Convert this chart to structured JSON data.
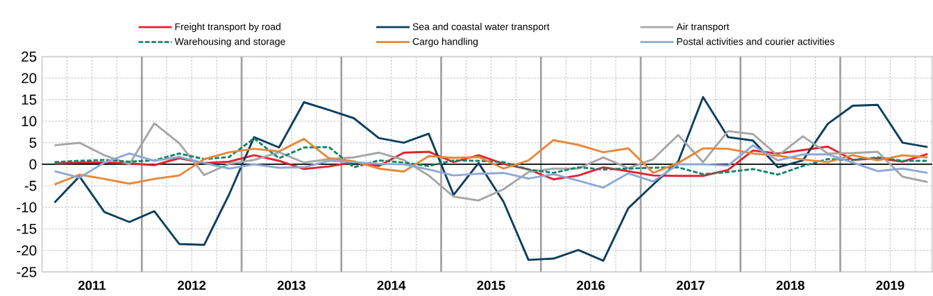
{
  "chart_data": {
    "type": "line",
    "x": [
      2010.625,
      2010.875,
      2011.125,
      2011.375,
      2011.625,
      2011.875,
      2012.125,
      2012.375,
      2012.625,
      2012.875,
      2013.125,
      2013.375,
      2013.625,
      2013.875,
      2014.125,
      2014.375,
      2014.625,
      2014.875,
      2015.125,
      2015.375,
      2015.625,
      2015.875,
      2016.125,
      2016.375,
      2016.625,
      2016.875,
      2017.125,
      2017.375,
      2017.625,
      2017.875,
      2018.125,
      2018.375,
      2018.625,
      2018.875,
      2019.125,
      2019.375
    ],
    "series": [
      {
        "name": "Freight transport by road",
        "color": "#e0232e",
        "values": [
          0.2,
          0.4,
          0.4,
          0.2,
          -0.2,
          1.4,
          0.3,
          0.6,
          2.1,
          0.8,
          -1.1,
          -0.5,
          0.5,
          -0.4,
          2.7,
          2.9,
          0.5,
          2.1,
          0.1,
          -1.2,
          -3.5,
          -2.6,
          -0.7,
          -1.6,
          -2.6,
          -2.7,
          -2.7,
          -1.3,
          3.2,
          2.5,
          3.3,
          4.1,
          1.0,
          1.4,
          0.6,
          2.4
        ]
      },
      {
        "name": "Sea and coastal water transport",
        "color": "#0e3f5c",
        "values": [
          -8.9,
          -2.8,
          -11.1,
          -13.4,
          -10.9,
          -18.5,
          -18.7,
          -7.0,
          6.3,
          3.9,
          14.4,
          12.6,
          10.7,
          6.1,
          5.0,
          7.1,
          -7.1,
          0.3,
          -8.7,
          -22.2,
          -21.9,
          -19.9,
          -22.4,
          -10.2,
          -4.7,
          0.6,
          15.6,
          6.3,
          5.5,
          -0.7,
          0.9,
          9.4,
          13.6,
          13.8,
          5.0,
          4.0
        ]
      },
      {
        "name": "Air transport",
        "color": "#a6a6a6",
        "values": [
          4.4,
          5.0,
          2.1,
          0.0,
          9.5,
          4.9,
          -2.5,
          0.1,
          1.0,
          2.8,
          0.4,
          1.2,
          1.6,
          2.7,
          1.0,
          -2.6,
          -7.5,
          -8.4,
          -5.8,
          -1.8,
          -1.0,
          -1.0,
          1.6,
          -0.9,
          1.2,
          6.8,
          0.5,
          7.7,
          7.0,
          2.0,
          6.5,
          2.5,
          2.6,
          2.9,
          -2.9,
          -4.1
        ]
      },
      {
        "name": "Warehousing and storage",
        "color": "#16856b",
        "line_style": "dashed",
        "values": [
          0.5,
          0.8,
          1.0,
          0.6,
          0.9,
          2.5,
          1.2,
          1.7,
          6.0,
          1.4,
          3.9,
          4.0,
          -0.7,
          0.9,
          0.4,
          -0.4,
          0.9,
          0.8,
          0.5,
          -1.2,
          -2.0,
          -0.7,
          -1.2,
          -1.0,
          -0.8,
          -0.7,
          -2.3,
          -1.8,
          -1.1,
          -2.4,
          -0.4,
          1.2,
          1.0,
          1.6,
          0.8,
          0.8
        ]
      },
      {
        "name": "Cargo handling",
        "color": "#e8873a",
        "values": [
          -4.7,
          -2.4,
          -3.4,
          -4.5,
          -3.4,
          -2.6,
          1.2,
          2.8,
          3.6,
          3.0,
          5.9,
          1.4,
          0.7,
          -1.0,
          -1.7,
          1.9,
          1.5,
          1.7,
          -1.0,
          0.9,
          5.6,
          4.5,
          2.8,
          3.7,
          -2.0,
          0.3,
          3.7,
          3.6,
          2.5,
          2.0,
          1.1,
          0.5,
          2.1,
          0.9,
          2.1,
          1.6
        ]
      },
      {
        "name": "Postal activities and courier activities",
        "color": "#8fa8d4",
        "values": [
          -1.6,
          -3.1,
          0.4,
          2.5,
          0.8,
          1.7,
          0.3,
          -1.0,
          0.0,
          -0.8,
          -0.7,
          0.8,
          0.5,
          0.1,
          0.0,
          -1.2,
          -2.6,
          -2.2,
          -2.0,
          -3.3,
          -2.3,
          -3.8,
          -5.4,
          -2.1,
          -4.0,
          0.0,
          0.0,
          -0.3,
          4.4,
          0.9,
          2.3,
          2.3,
          0.4,
          -1.6,
          -1.0,
          -2.0
        ]
      }
    ],
    "xlim": [
      2010.5,
      2019.42
    ],
    "xticks": [
      {
        "value": 2010.5,
        "label": null
      },
      {
        "value": 2010.75,
        "label": null
      },
      2011,
      {
        "value": 2011.25,
        "label": null
      },
      {
        "value": 2011.5,
        "label": null
      },
      {
        "value": 2011.75,
        "label": null
      },
      2012,
      {
        "value": 2012.25,
        "label": null
      },
      {
        "value": 2012.5,
        "label": null
      },
      {
        "value": 2012.75,
        "label": null
      },
      2013,
      {
        "value": 2013.25,
        "label": null
      },
      {
        "value": 2013.5,
        "label": null
      },
      {
        "value": 2013.75,
        "label": null
      },
      2014,
      {
        "value": 2014.25,
        "label": null
      },
      {
        "value": 2014.5,
        "label": null
      },
      {
        "value": 2014.75,
        "label": null
      },
      2015,
      {
        "value": 2015.25,
        "label": null
      },
      {
        "value": 2015.5,
        "label": null
      },
      {
        "value": 2015.75,
        "label": null
      },
      2016,
      {
        "value": 2016.25,
        "label": null
      },
      {
        "value": 2016.5,
        "label": null
      },
      {
        "value": 2016.75,
        "label": null
      },
      2017,
      {
        "value": 2017.25,
        "label": null
      },
      {
        "value": 2017.5,
        "label": null
      },
      {
        "value": 2017.75,
        "label": null
      },
      2018,
      {
        "value": 2018.25,
        "label": null
      },
      {
        "value": 2018.5,
        "label": null
      },
      {
        "value": 2018.75,
        "label": null
      },
      2019,
      {
        "value": 2019.25,
        "label": null
      }
    ],
    "ylim": [
      -25,
      25
    ],
    "yticks": [
      -25,
      -20,
      -15,
      -10,
      -5,
      0,
      5,
      10,
      15,
      20,
      25
    ],
    "ref_lines": [
      {
        "axis": "y",
        "value": 0,
        "color": "#000000"
      }
    ],
    "grid": true,
    "legend": "top",
    "marker": "none"
  }
}
